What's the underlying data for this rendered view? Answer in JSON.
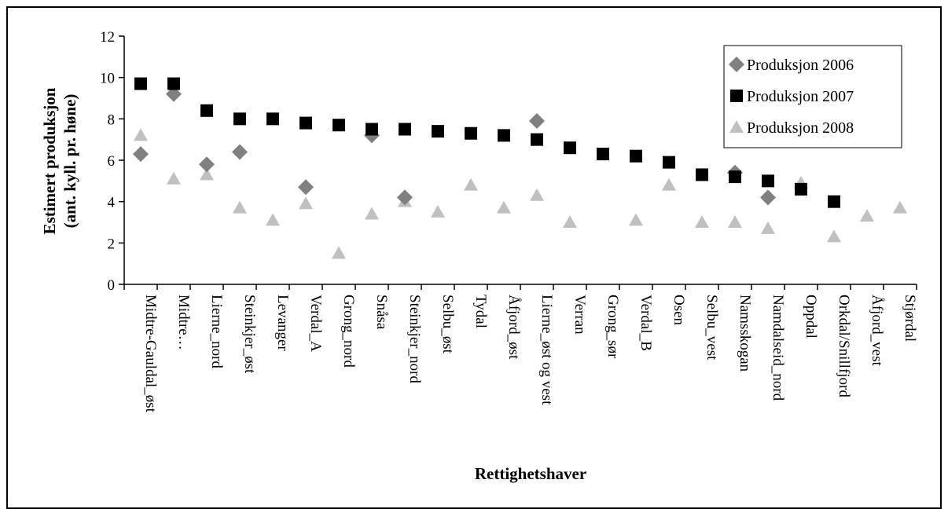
{
  "chart_data": {
    "type": "scatter",
    "title": "",
    "xlabel": "Rettighetshaver",
    "ylabel_line1": "Estimert produksjon",
    "ylabel_line2": "(ant. kyll. pr. høne)",
    "ylim": [
      0,
      12
    ],
    "yticks": [
      0,
      2,
      4,
      6,
      8,
      10,
      12
    ],
    "grid": false,
    "legend_position": "top-right",
    "categories": [
      "Midtre-Gauldal_øst",
      "Midtre…",
      "Lierne_nord",
      "Steinkjer_øst",
      "Levanger",
      "Verdal_A",
      "Grong_nord",
      "Snåsa",
      "Steinkjer_nord",
      "Selbu_øst",
      "Tydal",
      "Åfjord_øst",
      "Lierne_øst og vest",
      "Verran",
      "Grong_sør",
      "Verdal_B",
      "Osen",
      "Selbu_vest",
      "Namsskogan",
      "Namdalseid_nord",
      "Oppdal",
      "Orkdal/Snillfjord",
      "Åfjord_vest",
      "Stjørdal"
    ],
    "series": [
      {
        "name": "Produksjon 2006",
        "marker": "diamond",
        "color": "#808080",
        "values": [
          6.3,
          9.2,
          5.8,
          6.4,
          null,
          4.7,
          null,
          7.2,
          4.2,
          null,
          null,
          null,
          7.9,
          null,
          null,
          null,
          null,
          null,
          5.4,
          4.2,
          null,
          null,
          null,
          null
        ]
      },
      {
        "name": "Produksjon 2007",
        "marker": "square",
        "color": "#000000",
        "values": [
          9.7,
          9.7,
          8.4,
          8.0,
          8.0,
          7.8,
          7.7,
          7.5,
          7.5,
          7.4,
          7.3,
          7.2,
          7.0,
          6.6,
          6.3,
          6.2,
          5.9,
          5.3,
          5.2,
          5.0,
          4.6,
          4.0,
          null,
          null
        ]
      },
      {
        "name": "Produksjon 2008",
        "marker": "triangle",
        "color": "#c0c0c0",
        "values": [
          7.2,
          5.1,
          5.3,
          3.7,
          3.1,
          3.9,
          1.5,
          3.4,
          4.0,
          3.5,
          4.8,
          3.7,
          4.3,
          3.0,
          null,
          3.1,
          4.8,
          3.0,
          3.0,
          2.7,
          4.9,
          2.3,
          3.3,
          3.7
        ]
      }
    ]
  }
}
